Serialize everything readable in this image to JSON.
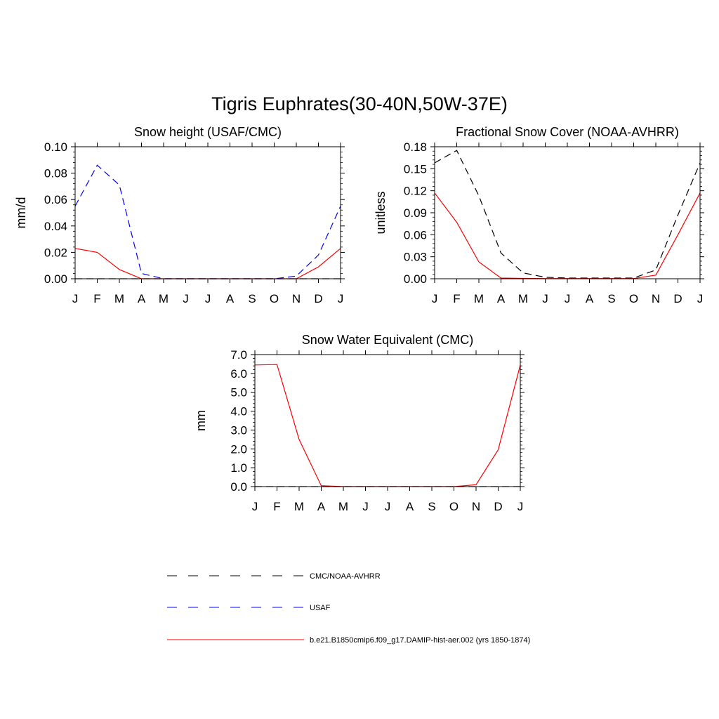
{
  "main_title": "Tigris Euphrates(30-40N,50W-37E)",
  "legend": [
    {
      "label": "CMC/NOAA-AVHRR",
      "color": "#000000",
      "dash": "dashed"
    },
    {
      "label": "USAF",
      "color": "#0000ff",
      "dash": "dashed"
    },
    {
      "label": "b.e21.B1850cmip6.f09_g17.DAMIP-hist-aer.002 (yrs 1850-1874)",
      "color": "#ff0000",
      "dash": "solid"
    }
  ],
  "chart_data": [
    {
      "type": "line",
      "title": "Snow height (USAF/CMC)",
      "xlabel": "",
      "ylabel": "mm/d",
      "categories": [
        "J",
        "F",
        "M",
        "A",
        "M",
        "J",
        "J",
        "A",
        "S",
        "O",
        "N",
        "D",
        "J"
      ],
      "ylim": [
        0,
        0.1
      ],
      "yticks": [
        "0.00",
        "0.02",
        "0.04",
        "0.06",
        "0.08",
        "0.10"
      ],
      "series": [
        {
          "name": "CMC/NOAA-AVHRR",
          "color": "#000000",
          "dash": "dashed",
          "values": [
            0,
            0,
            0,
            0,
            0,
            0,
            0,
            0,
            0,
            0,
            0,
            0,
            0
          ]
        },
        {
          "name": "USAF",
          "color": "#0000ff",
          "dash": "dashed",
          "values": [
            0.055,
            0.086,
            0.071,
            0.004,
            0.0,
            0.0,
            0.0,
            0.0,
            0.0,
            0.0,
            0.002,
            0.018,
            0.055
          ]
        },
        {
          "name": "b.e21.B1850cmip6.f09_g17.DAMIP-hist-aer.002 (yrs 1850-1874)",
          "color": "#ff0000",
          "dash": "solid",
          "values": [
            0.023,
            0.02,
            0.007,
            0.0,
            0.0,
            0.0,
            0.0,
            0.0,
            0.0,
            0.0,
            0.0,
            0.009,
            0.023
          ]
        }
      ]
    },
    {
      "type": "line",
      "title": "Fractional Snow Cover (NOAA-AVHRR)",
      "xlabel": "",
      "ylabel": "unitless",
      "categories": [
        "J",
        "F",
        "M",
        "A",
        "M",
        "J",
        "J",
        "A",
        "S",
        "O",
        "N",
        "D",
        "J"
      ],
      "ylim": [
        0,
        0.18
      ],
      "yticks": [
        "0.00",
        "0.03",
        "0.06",
        "0.09",
        "0.12",
        "0.15",
        "0.18"
      ],
      "series": [
        {
          "name": "CMC/NOAA-AVHRR",
          "color": "#000000",
          "dash": "dashed",
          "values": [
            0.158,
            0.175,
            0.113,
            0.035,
            0.008,
            0.002,
            0.001,
            0.001,
            0.001,
            0.001,
            0.012,
            0.087,
            0.158
          ]
        },
        {
          "name": "b.e21.B1850cmip6.f09_g17.DAMIP-hist-aer.002 (yrs 1850-1874)",
          "color": "#ff0000",
          "dash": "solid",
          "values": [
            0.117,
            0.077,
            0.023,
            0.001,
            0.0005,
            0.0003,
            0.0003,
            0.0003,
            0.0003,
            0.0003,
            0.005,
            0.06,
            0.117
          ]
        }
      ]
    },
    {
      "type": "line",
      "title": "Snow Water Equivalent (CMC)",
      "xlabel": "",
      "ylabel": "mm",
      "categories": [
        "J",
        "F",
        "M",
        "A",
        "M",
        "J",
        "J",
        "A",
        "S",
        "O",
        "N",
        "D",
        "J"
      ],
      "ylim": [
        0,
        7.0
      ],
      "yticks": [
        "0.0",
        "1.0",
        "2.0",
        "3.0",
        "4.0",
        "5.0",
        "6.0",
        "7.0"
      ],
      "series": [
        {
          "name": "CMC/NOAA-AVHRR",
          "color": "#000000",
          "dash": "dashed",
          "values": [
            0,
            0,
            0,
            0,
            0,
            0,
            0,
            0,
            0,
            0,
            0,
            0,
            0
          ]
        },
        {
          "name": "b.e21.B1850cmip6.f09_g17.DAMIP-hist-aer.002 (yrs 1850-1874)",
          "color": "#ff0000",
          "dash": "solid",
          "values": [
            6.45,
            6.47,
            2.5,
            0.05,
            0.0,
            0.0,
            0.0,
            0.0,
            0.0,
            0.0,
            0.1,
            1.95,
            6.45
          ]
        }
      ]
    }
  ]
}
